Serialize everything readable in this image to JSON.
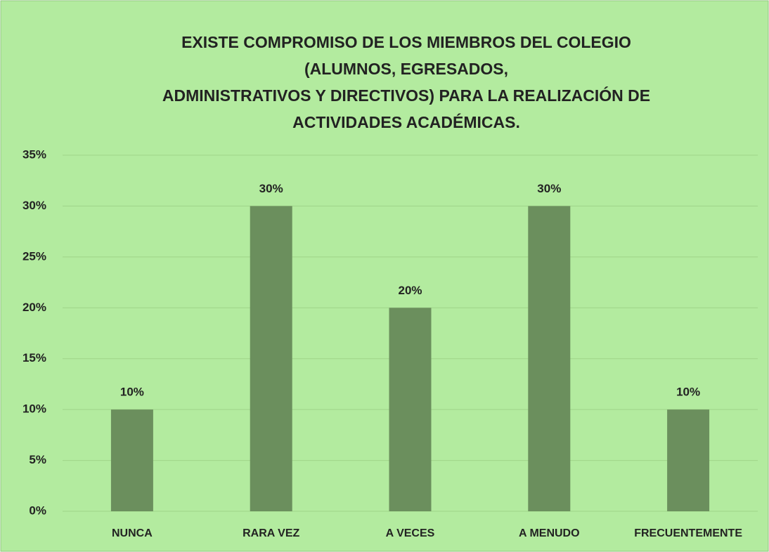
{
  "chart_data": {
    "type": "bar",
    "title": [
      "EXISTE COMPROMISO DE LOS MIEMBROS DEL COLEGIO",
      "(ALUMNOS, EGRESADOS,",
      "ADMINISTRATIVOS Y DIRECTIVOS) PARA LA REALIZACIÓN DE",
      "ACTIVIDADES ACADÉMICAS."
    ],
    "categories": [
      "NUNCA",
      "RARA VEZ",
      "A VECES",
      "A MENUDO",
      "FRECUENTEMENTE"
    ],
    "values": [
      10,
      30,
      20,
      30,
      10
    ],
    "value_labels": [
      "10%",
      "30%",
      "20%",
      "30%",
      "10%"
    ],
    "color": "#6b8f5d",
    "ylim": [
      0,
      35
    ],
    "yticks": [
      {
        "value": 0,
        "label": "0%"
      },
      {
        "value": 5,
        "label": "5%"
      },
      {
        "value": 10,
        "label": "10%"
      },
      {
        "value": 15,
        "label": "15%"
      },
      {
        "value": 20,
        "label": "20%"
      },
      {
        "value": 25,
        "label": "25%"
      },
      {
        "value": 30,
        "label": "30%"
      },
      {
        "value": 35,
        "label": "35%"
      }
    ],
    "grid": true
  }
}
